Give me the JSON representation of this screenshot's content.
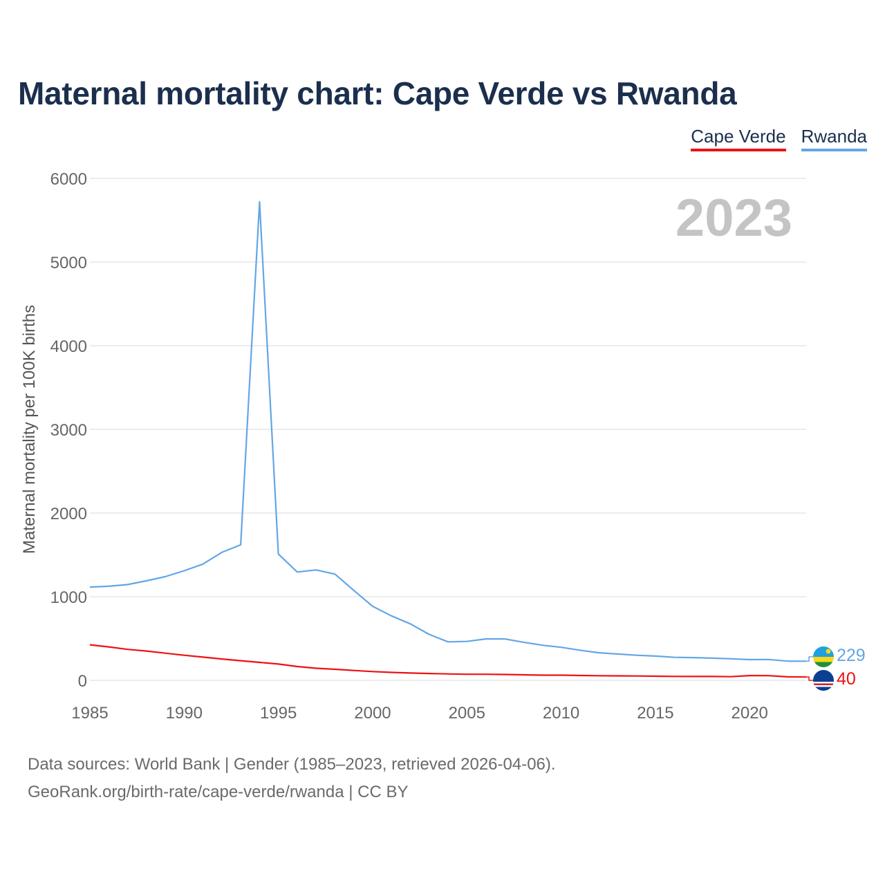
{
  "title": "Maternal mortality chart: Cape Verde vs Rwanda",
  "footer": {
    "line1": "Data sources: World Bank | Gender (1985–2023, retrieved 2026-04-06).",
    "line2": "GeoRank.org/birth-rate/cape-verde/rwanda | CC BY"
  },
  "colors": {
    "cape_verde": "#ee1111",
    "rwanda": "#62a6e5",
    "title": "#1b2f4d",
    "grid": "#e6e6e6"
  },
  "chart_data": {
    "type": "line",
    "title": "Maternal mortality chart: Cape Verde vs Rwanda",
    "ylabel": "Maternal mortality per 100K births",
    "xlabel": "",
    "year_label": "2023",
    "xlim": [
      1985,
      2023
    ],
    "ylim": [
      0,
      6000
    ],
    "x_ticks": [
      1985,
      1990,
      1995,
      2000,
      2005,
      2010,
      2015,
      2020
    ],
    "y_ticks": [
      0,
      1000,
      2000,
      3000,
      4000,
      5000,
      6000
    ],
    "grid": true,
    "legend_position": "top-right",
    "x": [
      1985,
      1986,
      1987,
      1988,
      1989,
      1990,
      1991,
      1992,
      1993,
      1994,
      1995,
      1996,
      1997,
      1998,
      1999,
      2000,
      2001,
      2002,
      2003,
      2004,
      2005,
      2006,
      2007,
      2008,
      2009,
      2010,
      2011,
      2012,
      2013,
      2014,
      2015,
      2016,
      2017,
      2018,
      2019,
      2020,
      2021,
      2022,
      2023
    ],
    "series": [
      {
        "name": "Cape Verde",
        "flag_icon": "cape-verde-flag-icon",
        "end_label": "40",
        "values": [
          425,
          400,
          370,
          350,
          325,
          300,
          278,
          255,
          235,
          215,
          195,
          165,
          145,
          132,
          118,
          105,
          95,
          88,
          82,
          77,
          73,
          73,
          70,
          66,
          62,
          62,
          58,
          55,
          54,
          52,
          50,
          47,
          46,
          46,
          44,
          57,
          56,
          42,
          40
        ]
      },
      {
        "name": "Rwanda",
        "flag_icon": "rwanda-flag-icon",
        "end_label": "229",
        "values": [
          1115,
          1125,
          1145,
          1190,
          1240,
          1310,
          1390,
          1530,
          1620,
          5720,
          1510,
          1295,
          1320,
          1270,
          1075,
          885,
          770,
          675,
          550,
          460,
          465,
          495,
          495,
          455,
          420,
          395,
          360,
          330,
          315,
          300,
          290,
          275,
          272,
          265,
          258,
          248,
          250,
          230,
          229
        ]
      }
    ]
  }
}
